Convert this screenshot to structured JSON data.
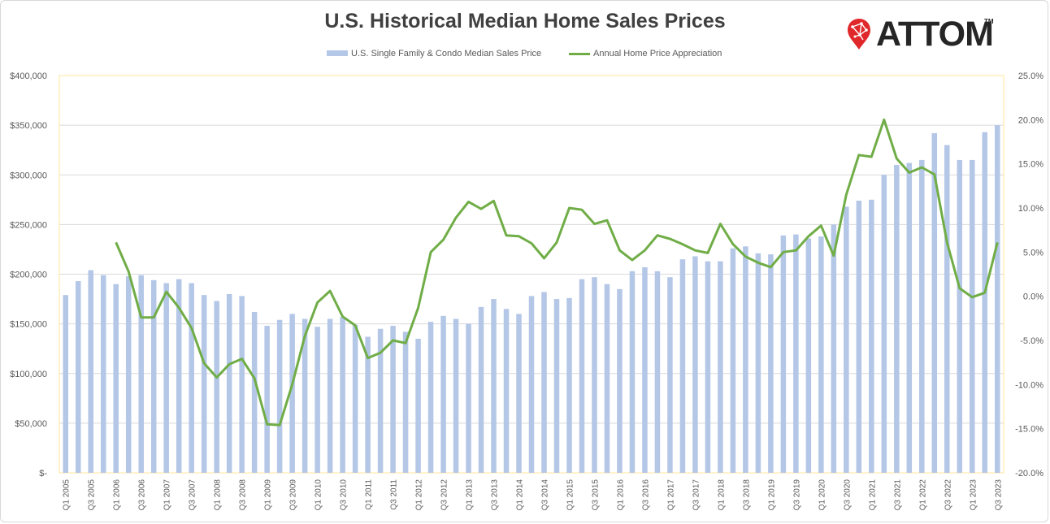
{
  "title": "U.S. Historical Median Home Sales Prices",
  "logo": {
    "text": "ATTOM",
    "tm": "TM"
  },
  "colors": {
    "bars": "#b4c7e7",
    "line": "#70ad47",
    "grid": "#d9d9d9",
    "plot_border": "#ffe699"
  },
  "chart_data": {
    "type": "bar",
    "title": "U.S. Historical Median Home Sales Prices",
    "legend_position": "top",
    "grid": true,
    "categories": [
      "Q1 2005",
      "Q2 2005",
      "Q3 2005",
      "Q4 2005",
      "Q1 2006",
      "Q2 2006",
      "Q3 2006",
      "Q4 2006",
      "Q1 2007",
      "Q2 2007",
      "Q3 2007",
      "Q4 2007",
      "Q1 2008",
      "Q2 2008",
      "Q3 2008",
      "Q4 2008",
      "Q1 2009",
      "Q2 2009",
      "Q3 2009",
      "Q4 2009",
      "Q1 2010",
      "Q2 2010",
      "Q3 2010",
      "Q4 2010",
      "Q1 2011",
      "Q2 2011",
      "Q3 2011",
      "Q4 2011",
      "Q1 2012",
      "Q2 2012",
      "Q3 2012",
      "Q4 2012",
      "Q1 2013",
      "Q2 2013",
      "Q3 2013",
      "Q4 2013",
      "Q1 2014",
      "Q2 2014",
      "Q3 2014",
      "Q4 2014",
      "Q1 2015",
      "Q2 2015",
      "Q3 2015",
      "Q4 2015",
      "Q1 2016",
      "Q2 2016",
      "Q3 2016",
      "Q4 2016",
      "Q1 2017",
      "Q2 2017",
      "Q3 2017",
      "Q4 2017",
      "Q1 2018",
      "Q2 2018",
      "Q3 2018",
      "Q4 2018",
      "Q1 2019",
      "Q2 2019",
      "Q3 2019",
      "Q4 2019",
      "Q1 2020",
      "Q2 2020",
      "Q3 2020",
      "Q4 2020",
      "Q1 2021",
      "Q2 2021",
      "Q3 2021",
      "Q4 2021",
      "Q1 2022",
      "Q2 2022",
      "Q3 2022",
      "Q4 2022",
      "Q1 2023",
      "Q2 2023",
      "Q3 2023"
    ],
    "x_tick_labels": [
      "Q1 2005",
      "Q3 2005",
      "Q1 2006",
      "Q3 2006",
      "Q1 2007",
      "Q3 2007",
      "Q1 2008",
      "Q3 2008",
      "Q1 2009",
      "Q3 2009",
      "Q1 2010",
      "Q3 2010",
      "Q1 2011",
      "Q3 2011",
      "Q1 2012",
      "Q3 2012",
      "Q1 2013",
      "Q3 2013",
      "Q1 2014",
      "Q3 2014",
      "Q1 2015",
      "Q3 2015",
      "Q1 2016",
      "Q3 2016",
      "Q1 2017",
      "Q3 2017",
      "Q1 2018",
      "Q3 2018",
      "Q1 2019",
      "Q3 2019",
      "Q1 2020",
      "Q3 2020",
      "Q1 2021",
      "Q3 2021",
      "Q1 2022",
      "Q3 2022",
      "Q1 2023",
      "Q3 2023"
    ],
    "series": [
      {
        "name": "U.S. Single Family & Condo Median Sales Price",
        "type": "bar",
        "axis": "left",
        "values": [
          179000,
          193000,
          204000,
          199000,
          190000,
          198000,
          199000,
          194000,
          191000,
          195000,
          191000,
          179000,
          173000,
          180000,
          178000,
          162000,
          148000,
          154000,
          160000,
          155000,
          147000,
          155000,
          157000,
          149000,
          137000,
          145000,
          148000,
          142000,
          135000,
          152000,
          158000,
          155000,
          150000,
          167000,
          175000,
          165000,
          160000,
          178000,
          182000,
          175000,
          176000,
          195000,
          197000,
          190000,
          185000,
          203000,
          207000,
          203000,
          197000,
          215000,
          218000,
          213000,
          213000,
          226000,
          228000,
          221000,
          220000,
          239000,
          240000,
          236000,
          238000,
          250000,
          268000,
          274000,
          275000,
          300000,
          310000,
          312000,
          315000,
          342000,
          330000,
          315000,
          315000,
          343000,
          350000
        ]
      },
      {
        "name": "Annual Home Price Appreciation",
        "type": "line",
        "axis": "right",
        "values": [
          null,
          null,
          null,
          null,
          6.1,
          2.8,
          -2.4,
          -2.4,
          0.5,
          -1.3,
          -3.6,
          -7.6,
          -9.2,
          -7.7,
          -7.1,
          -9.3,
          -14.5,
          -14.6,
          -10.0,
          -4.5,
          -0.7,
          0.6,
          -2.3,
          -3.3,
          -7.0,
          -6.4,
          -5.0,
          -5.3,
          -1.3,
          5.0,
          6.4,
          8.9,
          10.7,
          9.9,
          10.8,
          6.9,
          6.8,
          6.0,
          4.3,
          6.1,
          10.0,
          9.8,
          8.2,
          8.6,
          5.2,
          4.1,
          5.2,
          6.9,
          6.5,
          5.9,
          5.2,
          4.9,
          8.2,
          5.9,
          4.5,
          3.8,
          3.3,
          5.0,
          5.2,
          6.8,
          8.0,
          4.6,
          11.5,
          16.0,
          15.8,
          20.0,
          15.6,
          14.0,
          14.6,
          13.8,
          6.1,
          0.9,
          -0.1,
          0.4,
          6.1
        ]
      }
    ],
    "y_left": {
      "min": 0,
      "max": 400000,
      "ticks": [
        "$-",
        "$50,000",
        "$100,000",
        "$150,000",
        "$200,000",
        "$250,000",
        "$300,000",
        "$350,000",
        "$400,000"
      ]
    },
    "y_right": {
      "min": -20,
      "max": 25,
      "ticks": [
        "-20.0%",
        "-15.0%",
        "-10.0%",
        "-5.0%",
        "0.0%",
        "5.0%",
        "10.0%",
        "15.0%",
        "20.0%",
        "25.0%"
      ]
    }
  }
}
